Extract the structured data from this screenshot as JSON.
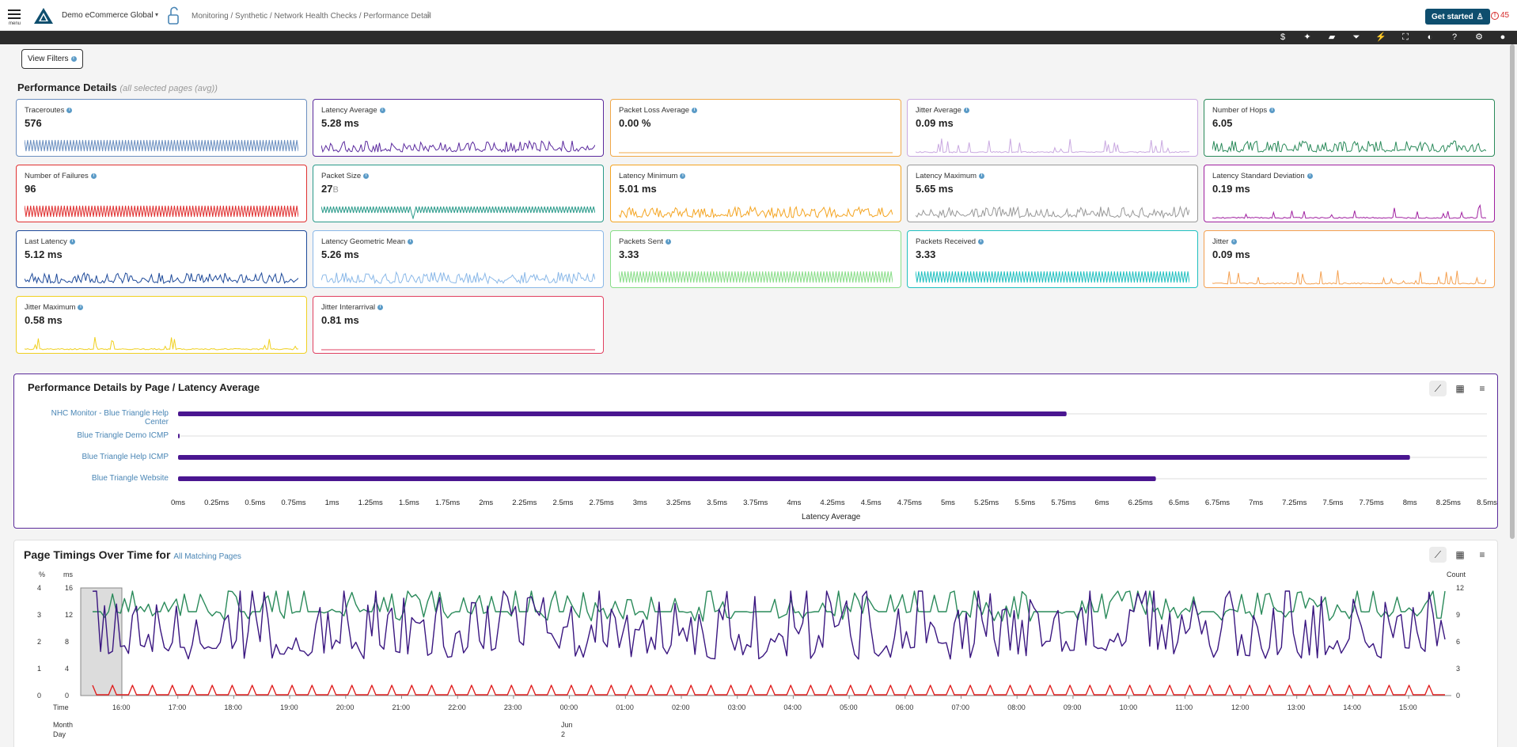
{
  "header": {
    "menu_label": "menu",
    "org_name": "Demo eCommerce Global",
    "org_caret": "▾",
    "breadcrumb": "Monitoring / Synthetic / Network Health Checks / Performance Detail",
    "get_started": "Get started",
    "alerts_count": "45"
  },
  "toolbar": {
    "icons": [
      "dollar-icon",
      "sparkle-icon",
      "chat-icon",
      "filter-icon",
      "lightning-icon",
      "fullscreen-icon",
      "contrast-icon",
      "help-icon",
      "gear-icon",
      "user-icon"
    ],
    "glyphs": [
      "$",
      "✦",
      "▰",
      "⏷",
      "⚡",
      "⛶",
      "◐",
      "?",
      "⚙",
      "●"
    ]
  },
  "filters": {
    "view_filters_label": "View Filters"
  },
  "performance": {
    "title": "Performance Details",
    "subtitle": "(all selected pages (avg))",
    "cards": [
      {
        "label": "Traceroutes",
        "value": "576",
        "unit": "",
        "color": "#6b8fc0",
        "pattern": "dense"
      },
      {
        "label": "Latency Average",
        "value": "5.28 ms",
        "unit": "",
        "color": "#5b2a9e",
        "pattern": "spiky"
      },
      {
        "label": "Packet Loss Average",
        "value": "0.00 %",
        "unit": "",
        "color": "#f0a848",
        "pattern": "flat"
      },
      {
        "label": "Jitter Average",
        "value": "0.09 ms",
        "unit": "",
        "color": "#c9a8e0",
        "pattern": "sparse"
      },
      {
        "label": "Number of Hops",
        "value": "6.05",
        "unit": "",
        "color": "#2a8a5a",
        "pattern": "medium"
      },
      {
        "label": "Number of Failures",
        "value": "96",
        "unit": "",
        "color": "#e03030",
        "pattern": "dense"
      },
      {
        "label": "Packet Size",
        "value": "27",
        "unit": "B",
        "color": "#2a9a8a",
        "pattern": "comb"
      },
      {
        "label": "Latency Minimum",
        "value": "5.01 ms",
        "unit": "",
        "color": "#f4a420",
        "pattern": "spiky"
      },
      {
        "label": "Latency Maximum",
        "value": "5.65 ms",
        "unit": "",
        "color": "#999999",
        "pattern": "spiky"
      },
      {
        "label": "Latency Standard Deviation",
        "value": "0.19 ms",
        "unit": "",
        "color": "#a020a0",
        "pattern": "sparse"
      },
      {
        "label": "Last Latency",
        "value": "5.12 ms",
        "unit": "",
        "color": "#1e4a9a",
        "pattern": "spiky"
      },
      {
        "label": "Latency Geometric Mean",
        "value": "5.26 ms",
        "unit": "",
        "color": "#8ab8e8",
        "pattern": "spiky"
      },
      {
        "label": "Packets Sent",
        "value": "3.33",
        "unit": "",
        "color": "#88dd88",
        "pattern": "dense"
      },
      {
        "label": "Packets Received",
        "value": "3.33",
        "unit": "",
        "color": "#20c0c0",
        "pattern": "dense"
      },
      {
        "label": "Jitter",
        "value": "0.09 ms",
        "unit": "",
        "color": "#f4a050",
        "pattern": "sparse"
      },
      {
        "label": "Jitter Maximum",
        "value": "0.58 ms",
        "unit": "",
        "color": "#f0d020",
        "pattern": "sparse"
      },
      {
        "label": "Jitter Interarrival",
        "value": "0.81 ms",
        "unit": "",
        "color": "#e04060",
        "pattern": "flat"
      }
    ]
  },
  "by_page": {
    "title": "Performance Details by Page / Latency Average",
    "chart_data": {
      "type": "bar",
      "orientation": "horizontal",
      "categories": [
        "NHC Monitor - Blue Triangle Help Center",
        "Blue Triangle Demo ICMP",
        "Blue Triangle Help ICMP",
        "Blue Triangle Website"
      ],
      "values": [
        5.77,
        0.01,
        8.0,
        6.35
      ],
      "xlabel": "Latency Average",
      "xlim": [
        0,
        8.5
      ],
      "xticks": [
        "0ms",
        "0.25ms",
        "0.5ms",
        "0.75ms",
        "1ms",
        "1.25ms",
        "1.5ms",
        "1.75ms",
        "2ms",
        "2.25ms",
        "2.5ms",
        "2.75ms",
        "3ms",
        "3.25ms",
        "3.5ms",
        "3.75ms",
        "4ms",
        "4.25ms",
        "4.5ms",
        "4.75ms",
        "5ms",
        "5.25ms",
        "5.5ms",
        "5.75ms",
        "6ms",
        "6.25ms",
        "6.5ms",
        "6.75ms",
        "7ms",
        "7.25ms",
        "7.5ms",
        "7.75ms",
        "8ms",
        "8.25ms",
        "8.5ms"
      ],
      "bar_color": "#4a1690"
    }
  },
  "timings": {
    "title": "Page Timings Over Time for",
    "link": "All Matching Pages",
    "left_axis_pct_label": "%",
    "left_axis_ms_label": "ms",
    "right_axis_label": "Count",
    "pct_ticks": [
      "4",
      "3",
      "2",
      "1",
      "0"
    ],
    "ms_ticks": [
      "16",
      "12",
      "8",
      "4",
      "0"
    ],
    "count_ticks": [
      "12",
      "9",
      "6",
      "3",
      "0"
    ],
    "time_label": "Time",
    "month_label": "Month",
    "day_label": "Day",
    "month_value": "Jun",
    "day_value": "2",
    "chart_data": {
      "type": "line",
      "x": [
        "16:00",
        "17:00",
        "18:00",
        "19:00",
        "20:00",
        "21:00",
        "22:00",
        "23:00",
        "00:00",
        "01:00",
        "02:00",
        "03:00",
        "04:00",
        "05:00",
        "06:00",
        "07:00",
        "08:00",
        "09:00",
        "10:00",
        "11:00",
        "12:00",
        "13:00",
        "14:00",
        "15:00"
      ],
      "series": [
        {
          "color": "#2a8a5a"
        },
        {
          "color": "#3a1680"
        },
        {
          "color": "#e02020"
        }
      ]
    }
  }
}
